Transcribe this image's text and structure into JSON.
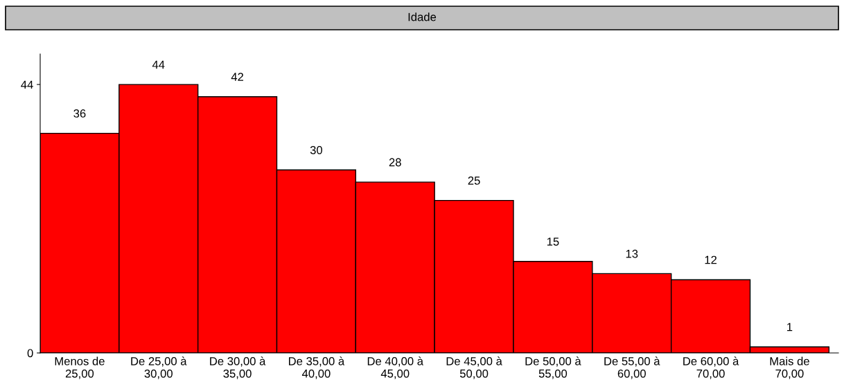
{
  "chart_data": {
    "type": "bar",
    "title": "Idade",
    "categories": [
      "Menos de\n25,00",
      "De 25,00 à\n30,00",
      "De 30,00 à\n35,00",
      "De 35,00 à\n40,00",
      "De 40,00 à\n45,00",
      "De 45,00 à\n50,00",
      "De 50,00 à\n55,00",
      "De 55,00 à\n60,00",
      "De 60,00 à\n70,00",
      "Mais de\n70,00"
    ],
    "values": [
      36,
      44,
      42,
      30,
      28,
      25,
      15,
      13,
      12,
      1
    ],
    "color": "#ff0000",
    "ylim": [
      0,
      49
    ],
    "yticks": [
      0,
      44
    ],
    "data_labels": true,
    "grid": false,
    "legend": false
  }
}
